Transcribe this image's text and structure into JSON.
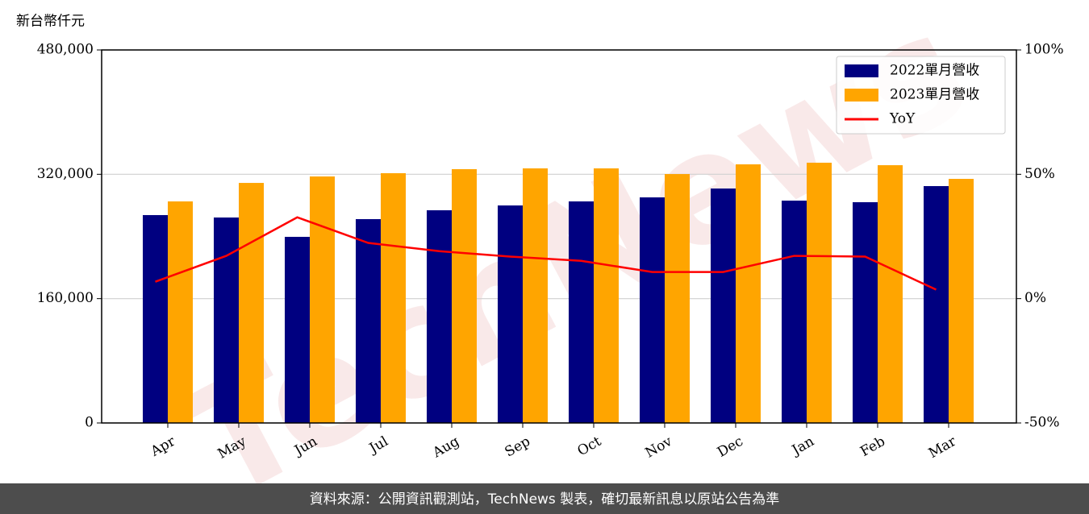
{
  "chart_data": {
    "type": "bar",
    "y_label": "新台幣仟元",
    "watermark": "TechNews",
    "footer": "資料來源：公開資訊觀測站，TechNews 製表，確切最新訊息以原站公告為準",
    "categories": [
      "Apr",
      "May",
      "Jun",
      "Jul",
      "Aug",
      "Sep",
      "Oct",
      "Nov",
      "Dec",
      "Jan",
      "Feb",
      "Mar"
    ],
    "series": [
      {
        "name": "2022單月營收",
        "color": "#000080",
        "type": "bar",
        "values": [
          267500,
          264400,
          239500,
          262300,
          273700,
          279900,
          285100,
          290300,
          301700,
          286100,
          284100,
          304800
        ]
      },
      {
        "name": "2023單月營收",
        "color": "#ffa500",
        "type": "bar",
        "values": [
          285100,
          308900,
          317200,
          321400,
          326600,
          327600,
          327600,
          320300,
          332800,
          334900,
          331700,
          314100
        ]
      },
      {
        "name": "YoY",
        "color": "#ff0000",
        "type": "line",
        "axis": "y2",
        "values": [
          6.8,
          17.2,
          32.7,
          22.4,
          19.1,
          16.9,
          15.2,
          10.7,
          10.7,
          17.2,
          16.9,
          3.6
        ]
      }
    ],
    "ylim": [
      0,
      480000
    ],
    "yticks": [
      0,
      {
        "value": 160000,
        "label": "160,000"
      },
      {
        "value": 320000,
        "label": "320,000"
      },
      {
        "value": 480000,
        "label": "480,000"
      }
    ],
    "y2lim": [
      -50,
      100
    ],
    "y2ticks": [
      {
        "value": -50,
        "label": "-50%"
      },
      {
        "value": 0,
        "label": "0%"
      },
      {
        "value": 50,
        "label": "50%"
      },
      {
        "value": 100,
        "label": "100%"
      }
    ],
    "grid": true,
    "legend": "upper-right"
  }
}
